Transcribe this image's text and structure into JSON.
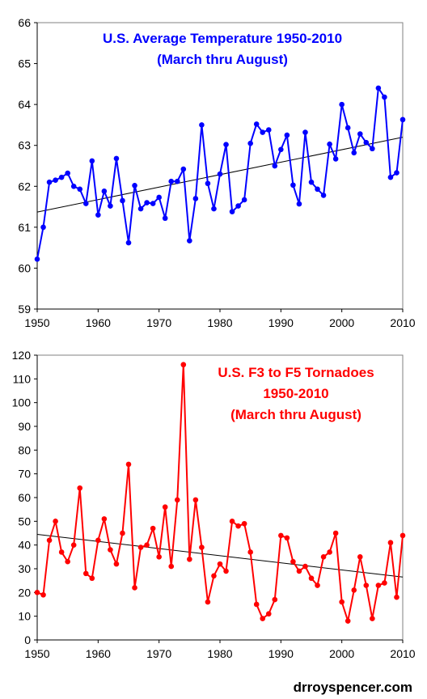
{
  "chart_data": [
    {
      "type": "line",
      "title_lines": [
        "U.S. Average Temperature 1950-2010",
        "(March thru August)"
      ],
      "title_color": "#0000ff",
      "series_color": "#0000ff",
      "trend_color": "#000000",
      "xlabel": "",
      "ylabel": "",
      "xlim": [
        1950,
        2010
      ],
      "ylim": [
        59,
        66
      ],
      "grid": false,
      "xticks": [
        1950,
        1960,
        1970,
        1980,
        1990,
        2000,
        2010
      ],
      "yticks": [
        59,
        60,
        61,
        62,
        63,
        64,
        65,
        66
      ],
      "series": [
        {
          "x": [
            1950,
            1951,
            1952,
            1953,
            1954,
            1955,
            1956,
            1957,
            1958,
            1959,
            1960,
            1961,
            1962,
            1963,
            1964,
            1965,
            1966,
            1967,
            1968,
            1969,
            1970,
            1971,
            1972,
            1973,
            1974,
            1975,
            1976,
            1977,
            1978,
            1979,
            1980,
            1981,
            1982,
            1983,
            1984,
            1985,
            1986,
            1987,
            1988,
            1989,
            1990,
            1991,
            1992,
            1993,
            1994,
            1995,
            1996,
            1997,
            1998,
            1999,
            2000,
            2001,
            2002,
            2003,
            2004,
            2005,
            2006,
            2007,
            2008,
            2009,
            2010
          ],
          "values": [
            60.22,
            61.0,
            62.1,
            62.15,
            62.22,
            62.32,
            62.0,
            61.93,
            61.58,
            62.62,
            61.3,
            61.88,
            61.52,
            62.68,
            61.65,
            60.62,
            62.02,
            61.45,
            61.6,
            61.58,
            61.73,
            61.22,
            62.12,
            62.12,
            62.42,
            60.67,
            61.7,
            63.5,
            62.07,
            61.45,
            62.3,
            63.02,
            61.38,
            61.52,
            61.67,
            63.05,
            63.52,
            63.32,
            63.38,
            62.5,
            62.9,
            63.25,
            62.03,
            61.57,
            63.32,
            62.1,
            61.93,
            61.78,
            63.03,
            62.67,
            64.0,
            63.43,
            62.82,
            63.28,
            63.07,
            62.92,
            64.4,
            64.18,
            62.22,
            62.33,
            63.63
          ]
        }
      ],
      "trend": {
        "x": [
          1950,
          2010
        ],
        "y": [
          61.37,
          63.2
        ]
      }
    },
    {
      "type": "line",
      "title_lines": [
        "U.S. F3 to F5 Tornadoes",
        "1950-2010",
        "(March thru August)"
      ],
      "title_color": "#ff0000",
      "series_color": "#ff0000",
      "trend_color": "#000000",
      "xlabel": "",
      "ylabel": "",
      "xlim": [
        1950,
        2010
      ],
      "ylim": [
        0,
        120
      ],
      "grid": false,
      "xticks": [
        1950,
        1960,
        1970,
        1980,
        1990,
        2000,
        2010
      ],
      "yticks": [
        0,
        10,
        20,
        30,
        40,
        50,
        60,
        70,
        80,
        90,
        100,
        110,
        120
      ],
      "series": [
        {
          "x": [
            1950,
            1951,
            1952,
            1953,
            1954,
            1955,
            1956,
            1957,
            1958,
            1959,
            1960,
            1961,
            1962,
            1963,
            1964,
            1965,
            1966,
            1967,
            1968,
            1969,
            1970,
            1971,
            1972,
            1973,
            1974,
            1975,
            1976,
            1977,
            1978,
            1979,
            1980,
            1981,
            1982,
            1983,
            1984,
            1985,
            1986,
            1987,
            1988,
            1989,
            1990,
            1991,
            1992,
            1993,
            1994,
            1995,
            1996,
            1997,
            1998,
            1999,
            2000,
            2001,
            2002,
            2003,
            2004,
            2005,
            2006,
            2007,
            2008,
            2009,
            2010
          ],
          "values": [
            20,
            19,
            42,
            50,
            37,
            33,
            40,
            64,
            28,
            26,
            42,
            51,
            38,
            32,
            45,
            74,
            22,
            39,
            40,
            47,
            35,
            56,
            31,
            59,
            116,
            34,
            59,
            39,
            16,
            27,
            32,
            29,
            50,
            48,
            49,
            37,
            15,
            9,
            11,
            17,
            44,
            43,
            33,
            29,
            31,
            26,
            23,
            35,
            37,
            45,
            16,
            8,
            21,
            35,
            23,
            9,
            23,
            24,
            41,
            18,
            44
          ]
        }
      ],
      "trend": {
        "x": [
          1950,
          2010
        ],
        "y": [
          44.5,
          26.5
        ]
      }
    }
  ],
  "credit": "drroyspencer.com"
}
